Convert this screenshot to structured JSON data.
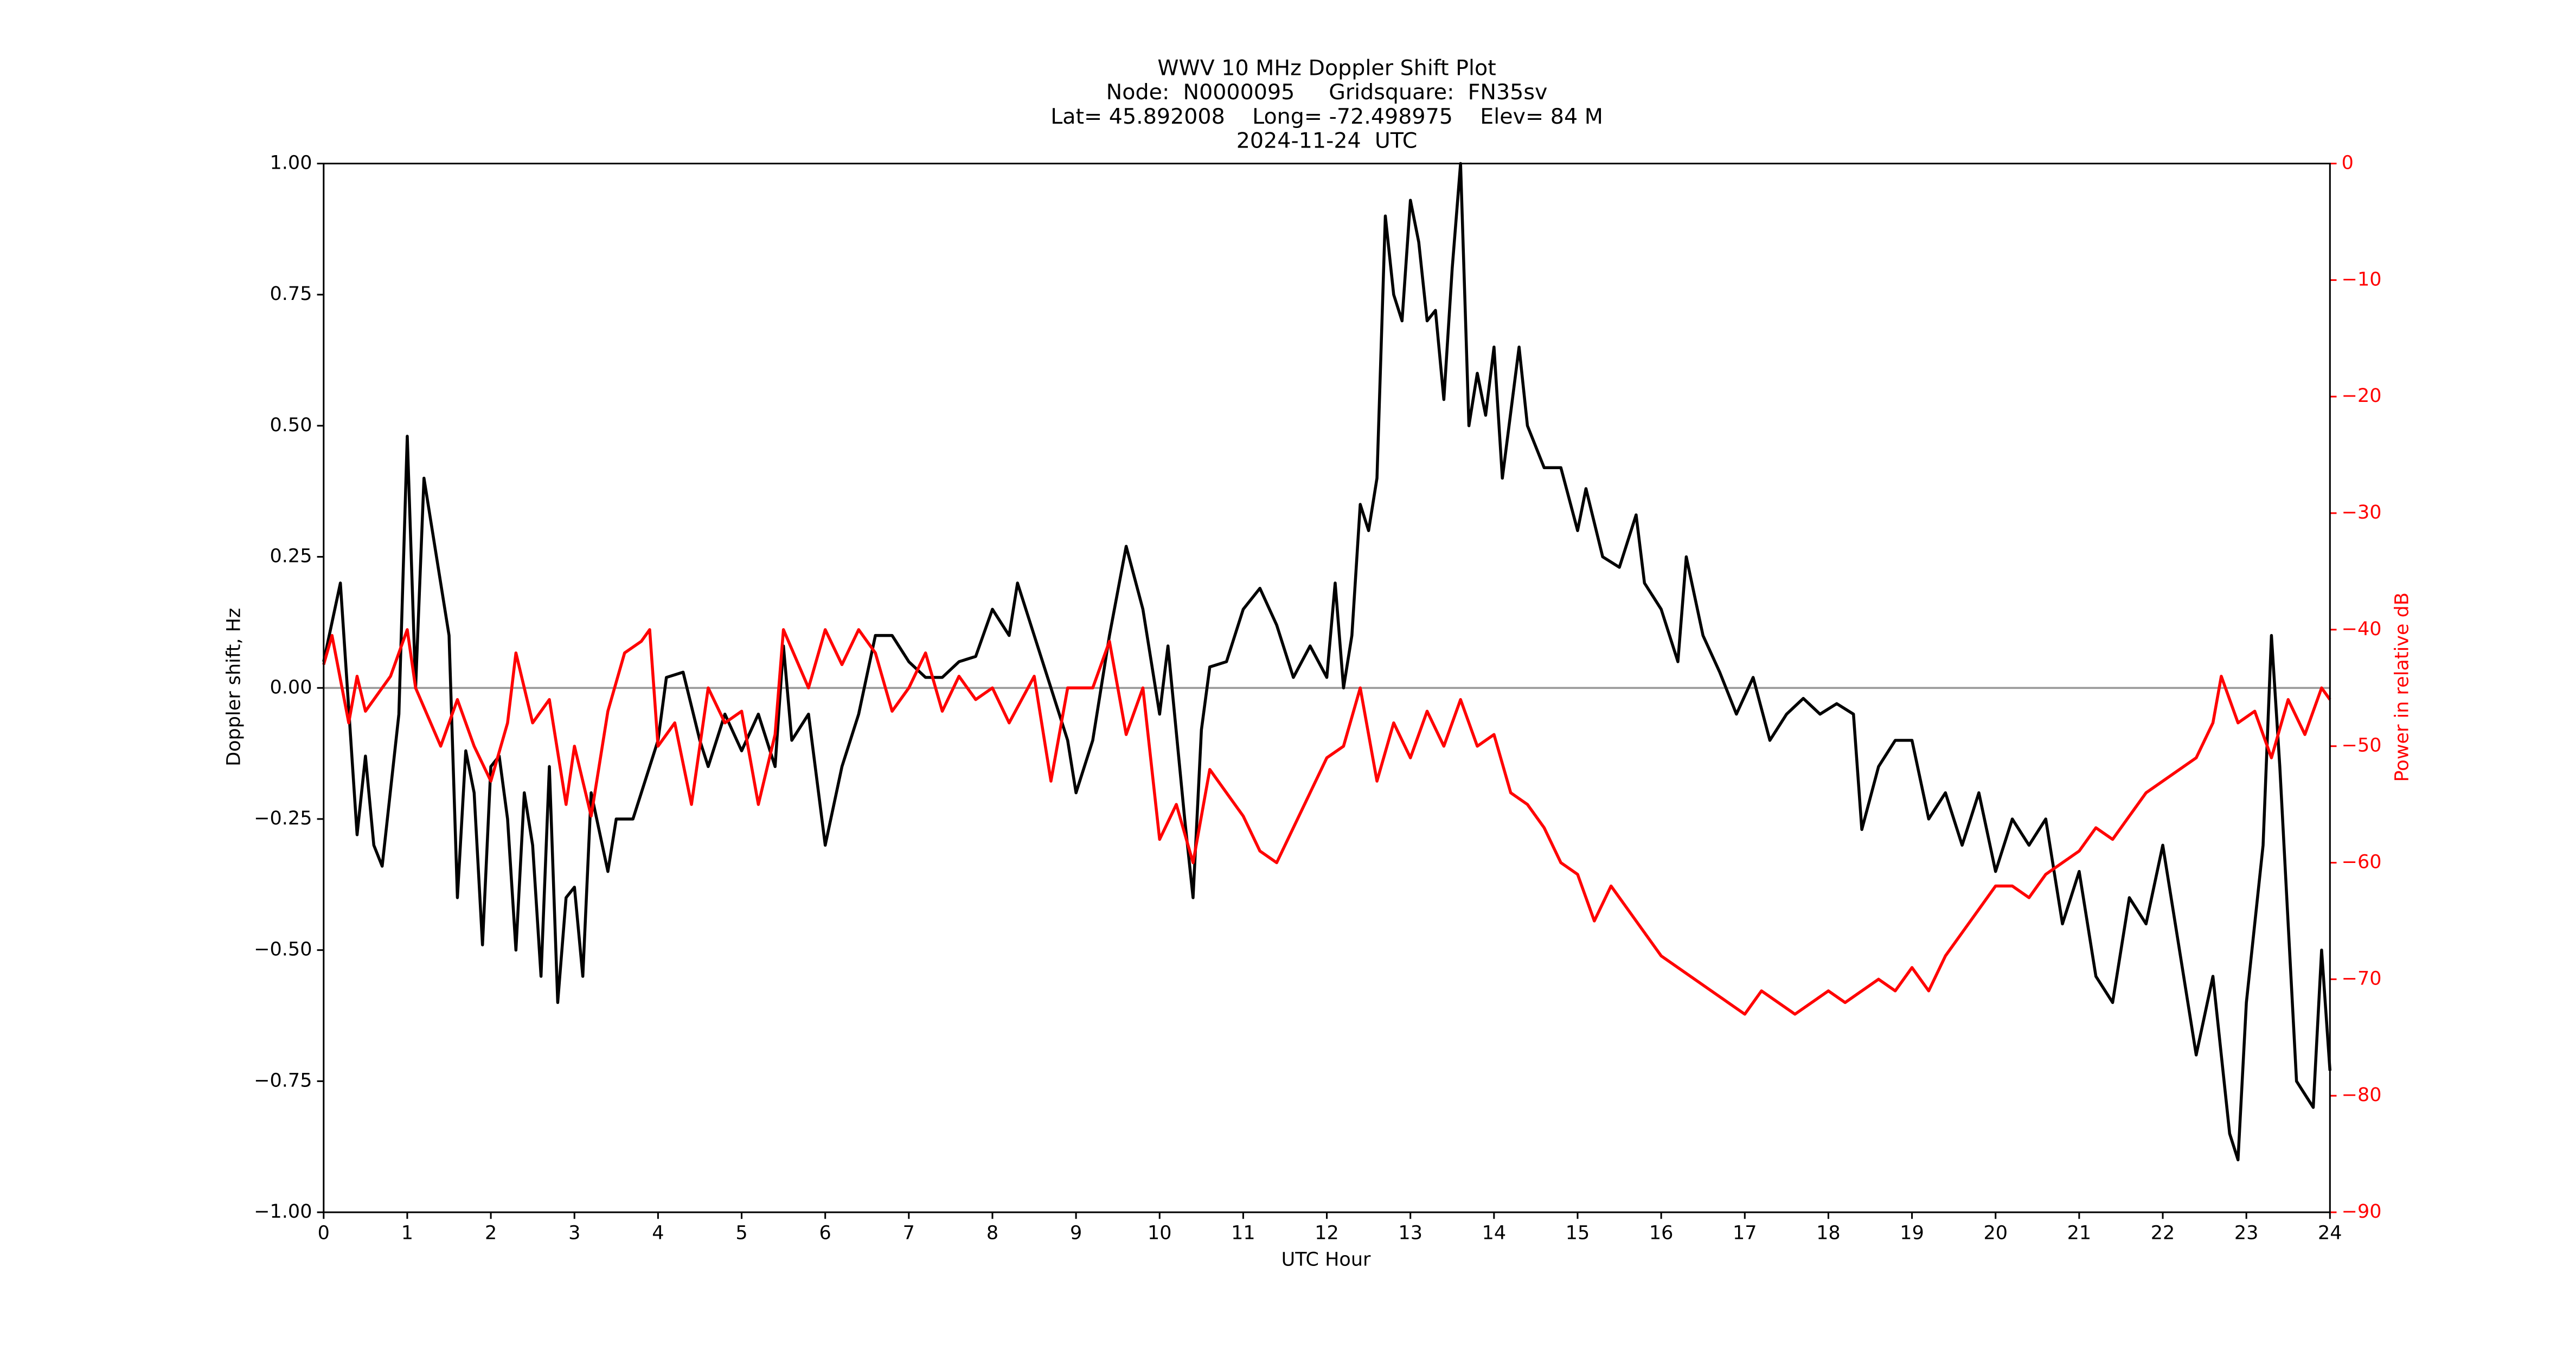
{
  "chart_data": {
    "type": "line",
    "title": [
      "WWV 10 MHz Doppler Shift Plot",
      "Node:  N0000095     Gridsquare:  FN35sv",
      "Lat= 45.892008    Long= -72.498975    Elev= 84 M",
      "2024-11-24  UTC"
    ],
    "x_label": "UTC Hour",
    "y_label": "Doppler shift, Hz",
    "y2_label": "Power in relative dB",
    "xlim": [
      0,
      24
    ],
    "xticks": [
      0,
      1,
      2,
      3,
      4,
      5,
      6,
      7,
      8,
      9,
      10,
      11,
      12,
      13,
      14,
      15,
      16,
      17,
      18,
      19,
      20,
      21,
      22,
      23,
      24
    ],
    "ylim": [
      -1,
      1
    ],
    "yticks": [
      {
        "value": -1,
        "label": "−1.00"
      },
      {
        "value": -0.75,
        "label": "−0.75"
      },
      {
        "value": -0.5,
        "label": "−0.50"
      },
      {
        "value": -0.25,
        "label": "−0.25"
      },
      {
        "value": 0,
        "label": "0.00"
      },
      0.25,
      {
        "value": 0.5,
        "label": "0.50"
      },
      0.75,
      {
        "value": 1,
        "label": "1.00"
      }
    ],
    "y2lim": [
      -90,
      0
    ],
    "y2ticks": [
      {
        "value": -90,
        "label": "−90"
      },
      {
        "value": -80,
        "label": "−80"
      },
      {
        "value": -70,
        "label": "−70"
      },
      {
        "value": -60,
        "label": "−60"
      },
      {
        "value": -50,
        "label": "−50"
      },
      {
        "value": -40,
        "label": "−40"
      },
      {
        "value": -30,
        "label": "−30"
      },
      {
        "value": -20,
        "label": "−20"
      },
      {
        "value": -10,
        "label": "−10"
      },
      0
    ],
    "y2_color": "#ff0000",
    "zero_line": true,
    "zero_line_color": "#999999",
    "series": [
      {
        "name": "Doppler shift",
        "color": "#000000",
        "x": [
          0,
          0.2,
          0.4,
          0.5,
          0.6,
          0.7,
          0.9,
          1.0,
          1.1,
          1.2,
          1.3,
          1.5,
          1.6,
          1.7,
          1.8,
          1.9,
          2.0,
          2.1,
          2.2,
          2.3,
          2.4,
          2.5,
          2.6,
          2.7,
          2.8,
          2.9,
          3.0,
          3.1,
          3.2,
          3.4,
          3.5,
          3.7,
          3.8,
          4.0,
          4.1,
          4.3,
          4.5,
          4.6,
          4.8,
          5.0,
          5.2,
          5.4,
          5.5,
          5.6,
          5.8,
          6.0,
          6.2,
          6.4,
          6.6,
          6.8,
          7.0,
          7.2,
          7.4,
          7.6,
          7.8,
          8.0,
          8.2,
          8.3,
          8.5,
          8.7,
          8.9,
          9.0,
          9.2,
          9.4,
          9.6,
          9.8,
          10.0,
          10.1,
          10.3,
          10.4,
          10.5,
          10.6,
          10.8,
          11.0,
          11.2,
          11.4,
          11.6,
          11.8,
          12.0,
          12.1,
          12.2,
          12.3,
          12.4,
          12.5,
          12.6,
          12.7,
          12.8,
          12.9,
          13.0,
          13.1,
          13.2,
          13.3,
          13.4,
          13.5,
          13.6,
          13.7,
          13.8,
          13.9,
          14.0,
          14.1,
          14.3,
          14.4,
          14.6,
          14.8,
          15.0,
          15.1,
          15.3,
          15.5,
          15.7,
          15.8,
          16.0,
          16.2,
          16.3,
          16.5,
          16.7,
          16.9,
          17.1,
          17.3,
          17.5,
          17.7,
          17.9,
          18.1,
          18.3,
          18.4,
          18.6,
          18.8,
          19.0,
          19.2,
          19.4,
          19.6,
          19.8,
          20.0,
          20.2,
          20.4,
          20.6,
          20.8,
          21.0,
          21.2,
          21.4,
          21.6,
          21.8,
          22.0,
          22.2,
          22.4,
          22.6,
          22.8,
          22.9,
          23.0,
          23.2,
          23.3,
          23.4,
          23.6,
          23.8,
          23.9,
          24.0
        ],
        "values": [
          0.05,
          0.2,
          -0.28,
          -0.13,
          -0.3,
          -0.34,
          -0.05,
          0.48,
          0.0,
          0.4,
          0.3,
          0.1,
          -0.4,
          -0.12,
          -0.2,
          -0.49,
          -0.15,
          -0.13,
          -0.25,
          -0.5,
          -0.2,
          -0.3,
          -0.55,
          -0.15,
          -0.6,
          -0.4,
          -0.38,
          -0.55,
          -0.2,
          -0.35,
          -0.25,
          -0.25,
          -0.2,
          -0.1,
          0.02,
          0.03,
          -0.1,
          -0.15,
          -0.05,
          -0.12,
          -0.05,
          -0.15,
          0.08,
          -0.1,
          -0.05,
          -0.3,
          -0.15,
          -0.05,
          0.1,
          0.1,
          0.05,
          0.02,
          0.02,
          0.05,
          0.06,
          0.15,
          0.1,
          0.2,
          0.1,
          0.0,
          -0.1,
          -0.2,
          -0.1,
          0.1,
          0.27,
          0.15,
          -0.05,
          0.08,
          -0.25,
          -0.4,
          -0.08,
          0.04,
          0.05,
          0.15,
          0.19,
          0.12,
          0.02,
          0.08,
          0.02,
          0.2,
          0.0,
          0.1,
          0.35,
          0.3,
          0.4,
          0.9,
          0.75,
          0.7,
          0.93,
          0.85,
          0.7,
          0.72,
          0.55,
          0.8,
          1.0,
          0.5,
          0.6,
          0.52,
          0.65,
          0.4,
          0.65,
          0.5,
          0.42,
          0.42,
          0.3,
          0.38,
          0.25,
          0.23,
          0.33,
          0.2,
          0.15,
          0.05,
          0.25,
          0.1,
          0.03,
          -0.05,
          0.02,
          -0.1,
          -0.05,
          -0.02,
          -0.05,
          -0.03,
          -0.05,
          -0.27,
          -0.15,
          -0.1,
          -0.1,
          -0.25,
          -0.2,
          -0.3,
          -0.2,
          -0.35,
          -0.25,
          -0.3,
          -0.25,
          -0.45,
          -0.35,
          -0.55,
          -0.6,
          -0.4,
          -0.45,
          -0.3,
          -0.5,
          -0.7,
          -0.55,
          -0.85,
          -0.9,
          -0.6,
          -0.3,
          0.1,
          -0.15,
          -0.75,
          -0.8,
          -0.5,
          -0.73
        ]
      },
      {
        "name": "Power",
        "color": "#ff0000",
        "axis": "y2",
        "x": [
          0,
          0.1,
          0.3,
          0.4,
          0.5,
          0.8,
          1.0,
          1.1,
          1.4,
          1.6,
          1.8,
          2.0,
          2.2,
          2.3,
          2.5,
          2.7,
          2.9,
          3.0,
          3.2,
          3.4,
          3.6,
          3.8,
          3.9,
          4.0,
          4.2,
          4.4,
          4.6,
          4.8,
          5.0,
          5.2,
          5.4,
          5.5,
          5.8,
          6.0,
          6.2,
          6.4,
          6.6,
          6.8,
          7.0,
          7.2,
          7.4,
          7.6,
          7.8,
          8.0,
          8.2,
          8.5,
          8.7,
          8.9,
          9.2,
          9.4,
          9.6,
          9.8,
          10.0,
          10.2,
          10.4,
          10.6,
          10.8,
          11.0,
          11.2,
          11.4,
          11.6,
          11.8,
          12.0,
          12.2,
          12.4,
          12.6,
          12.8,
          13.0,
          13.2,
          13.4,
          13.6,
          13.8,
          14.0,
          14.2,
          14.4,
          14.6,
          14.8,
          15.0,
          15.2,
          15.4,
          15.6,
          15.8,
          16.0,
          16.4,
          16.8,
          17.0,
          17.2,
          17.4,
          17.6,
          17.8,
          18.0,
          18.2,
          18.4,
          18.6,
          18.8,
          19.0,
          19.2,
          19.4,
          19.6,
          19.8,
          20.0,
          20.2,
          20.4,
          20.6,
          20.8,
          21.0,
          21.2,
          21.4,
          21.6,
          21.8,
          22.0,
          22.2,
          22.4,
          22.6,
          22.7,
          22.9,
          23.1,
          23.3,
          23.5,
          23.7,
          23.9,
          24.0
        ],
        "values": [
          -43,
          -40.5,
          -48,
          -44,
          -47,
          -44,
          -40,
          -45,
          -50,
          -46,
          -50,
          -53,
          -48,
          -42,
          -48,
          -46,
          -55,
          -50,
          -56,
          -47,
          -42,
          -41,
          -40,
          -50,
          -48,
          -55,
          -45,
          -48,
          -47,
          -55,
          -49,
          -40,
          -45,
          -40,
          -43,
          -40,
          -42,
          -47,
          -45,
          -42,
          -47,
          -44,
          -46,
          -45,
          -48,
          -44,
          -53,
          -45,
          -45,
          -41,
          -49,
          -45,
          -58,
          -55,
          -60,
          -52,
          -54,
          -56,
          -59,
          -60,
          -57,
          -54,
          -51,
          -50,
          -45,
          -53,
          -48,
          -51,
          -47,
          -50,
          -46,
          -50,
          -49,
          -54,
          -55,
          -57,
          -60,
          -61,
          -65,
          -62,
          -64,
          -66,
          -68,
          -70,
          -72,
          -73,
          -71,
          -72,
          -73,
          -72,
          -71,
          -72,
          -71,
          -70,
          -71,
          -69,
          -71,
          -68,
          -66,
          -64,
          -62,
          -62,
          -63,
          -61,
          -60,
          -59,
          -57,
          -58,
          -56,
          -54,
          -53,
          -52,
          -51,
          -48,
          -44,
          -48,
          -47,
          -51,
          -46,
          -49,
          -45,
          -46
        ]
      }
    ]
  }
}
